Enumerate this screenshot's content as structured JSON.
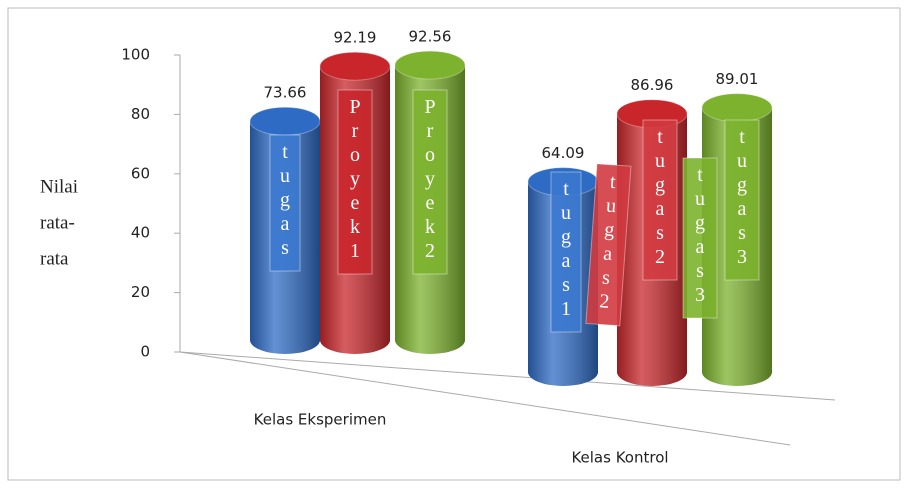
{
  "chart_data": {
    "type": "bar3d",
    "ylabel_lines": [
      "Nilai",
      "rata-",
      "rata"
    ],
    "categories": [
      "Kelas Eksperimen",
      "Kelas Kontrol"
    ],
    "series": [
      {
        "color": "#2e6bc4",
        "values": [
          73.66,
          64.09
        ]
      },
      {
        "color": "#c8262b",
        "values": [
          92.19,
          86.96
        ]
      },
      {
        "color": "#7cb22e",
        "values": [
          92.56,
          89.01
        ]
      }
    ],
    "ylim": [
      0,
      100
    ],
    "yticks": [
      0,
      20,
      40,
      60,
      80,
      100
    ],
    "annotations": [
      "tugas",
      "Proyek 1",
      "Proyek 2",
      "tugas 1",
      "tugas 2",
      "tugas 3",
      "tugas 2",
      "tugas 3"
    ]
  }
}
